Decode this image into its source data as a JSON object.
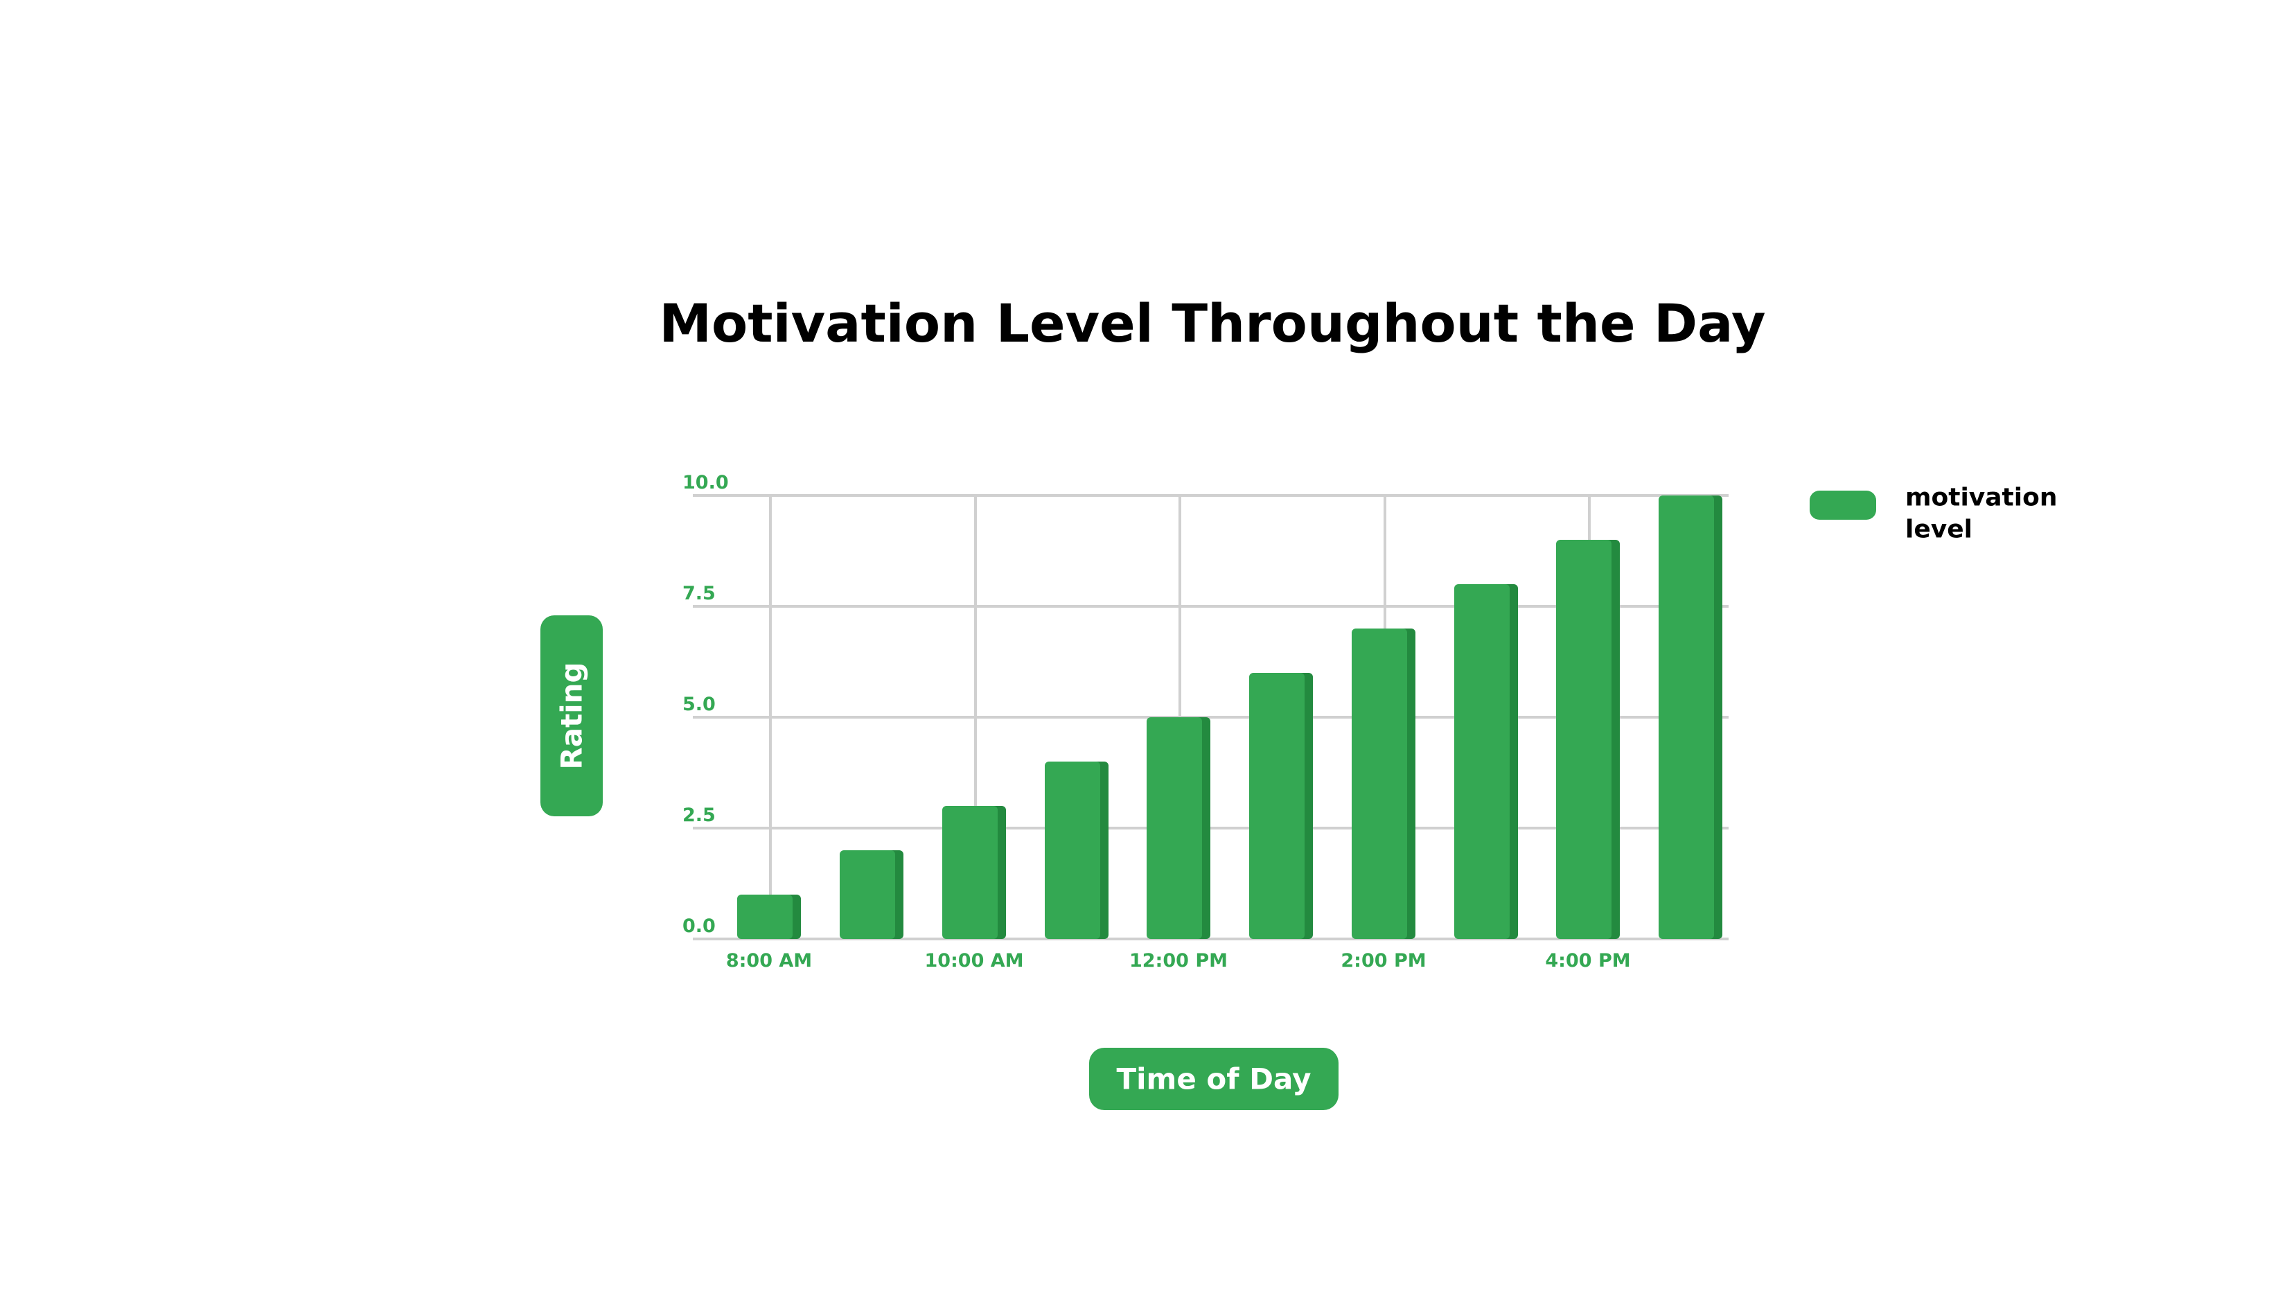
{
  "chart_data": {
    "type": "bar",
    "title": "Motivation Level Throughout the Day",
    "xlabel": "Time of Day",
    "ylabel": "Rating",
    "categories": [
      "8:00 AM",
      "",
      "10:00 AM",
      "",
      "12:00 PM",
      "",
      "2:00 PM",
      "",
      "4:00 PM",
      ""
    ],
    "series": [
      {
        "name": "motivation level",
        "values": [
          1,
          2,
          3,
          4,
          5,
          6,
          7,
          8,
          9,
          10
        ]
      }
    ],
    "ylim": [
      0,
      10
    ],
    "yticks": [
      "0.0",
      "2.5",
      "5.0",
      "7.5",
      "10.0"
    ],
    "grid": true,
    "legend_position": "top-right",
    "legend_lines": [
      "motivation",
      "level"
    ],
    "colors": {
      "bar": "#34a853",
      "bar_shade": "#238a3f",
      "grid": "#d0d0d0",
      "tick_label": "#34a853",
      "axis_label_bg": "#34a853",
      "title": "#000000"
    }
  }
}
